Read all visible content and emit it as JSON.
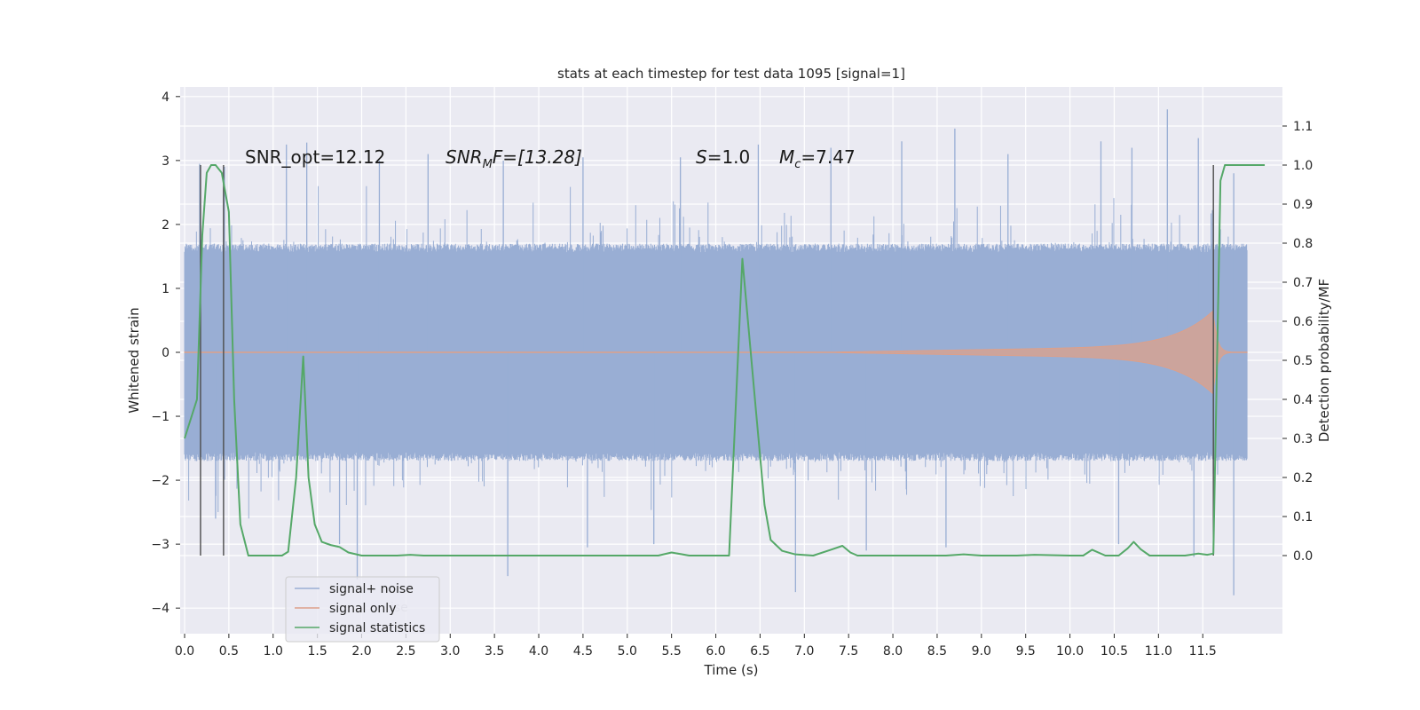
{
  "chart_data": {
    "type": "line",
    "title": "stats at each timestep for test data 1095 [signal=1]",
    "xlabel": "Time (s)",
    "ylabel": "Whitened strain",
    "y2label": "Detection probability/MF",
    "xlim": [
      -0.05,
      12.4
    ],
    "ylim": [
      -4.4,
      4.15
    ],
    "y2lim": [
      -0.2,
      1.2
    ],
    "xticks": [
      0.0,
      0.5,
      1.0,
      1.5,
      2.0,
      2.5,
      3.0,
      3.5,
      4.0,
      4.5,
      5.0,
      5.5,
      6.0,
      6.5,
      7.0,
      7.5,
      8.0,
      8.5,
      9.0,
      9.5,
      10.0,
      10.5,
      11.0,
      11.5
    ],
    "xticklabels": [
      "0.0",
      "0.5",
      "1.0",
      "1.5",
      "2.0",
      "2.5",
      "3.0",
      "3.5",
      "4.0",
      "4.5",
      "5.0",
      "5.5",
      "6.0",
      "6.5",
      "7.0",
      "7.5",
      "8.0",
      "8.5",
      "9.0",
      "9.5",
      "10.0",
      "10.5",
      "11.0",
      "11.5"
    ],
    "yticks": [
      4,
      3,
      2,
      1,
      0,
      -1,
      -2,
      -3,
      -4
    ],
    "yticklabels": [
      "4",
      "3",
      "2",
      "1",
      "0",
      "−1",
      "−2",
      "−3",
      "−4"
    ],
    "y2ticks": [
      1.1,
      1.0,
      0.9,
      0.8,
      0.7,
      0.6,
      0.5,
      0.4,
      0.3,
      0.2,
      0.1,
      0.0
    ],
    "y2ticklabels": [
      "1.1",
      "1.0",
      "0.9",
      "0.8",
      "0.7",
      "0.6",
      "0.5",
      "0.4",
      "0.3",
      "0.2",
      "0.1",
      "0.0"
    ],
    "noise_band": {
      "name": "signal+ noise",
      "x_range": [
        0.0,
        12.0
      ],
      "core_amplitude": 1.7,
      "peaks": [
        {
          "x": 0.17,
          "y": 2.95
        },
        {
          "x": 0.45,
          "y": 2.9
        },
        {
          "x": 1.15,
          "y": 3.25
        },
        {
          "x": 1.38,
          "y": 3.28
        },
        {
          "x": 2.2,
          "y": 3.0
        },
        {
          "x": 2.75,
          "y": 3.1
        },
        {
          "x": 3.6,
          "y": 3.0
        },
        {
          "x": 4.5,
          "y": 3.05
        },
        {
          "x": 5.6,
          "y": 3.05
        },
        {
          "x": 6.48,
          "y": 3.25
        },
        {
          "x": 7.3,
          "y": 3.2
        },
        {
          "x": 8.1,
          "y": 3.3
        },
        {
          "x": 8.7,
          "y": 3.5
        },
        {
          "x": 9.3,
          "y": 3.1
        },
        {
          "x": 10.35,
          "y": 3.3
        },
        {
          "x": 10.7,
          "y": 3.2
        },
        {
          "x": 11.1,
          "y": 3.8
        },
        {
          "x": 11.45,
          "y": 3.35
        },
        {
          "x": 11.85,
          "y": 2.8
        }
      ],
      "troughs": [
        {
          "x": 0.35,
          "y": -2.6
        },
        {
          "x": 1.75,
          "y": -3.0
        },
        {
          "x": 1.95,
          "y": -3.55
        },
        {
          "x": 3.65,
          "y": -3.5
        },
        {
          "x": 4.55,
          "y": -3.05
        },
        {
          "x": 5.3,
          "y": -3.0
        },
        {
          "x": 6.9,
          "y": -3.75
        },
        {
          "x": 7.7,
          "y": -3.1
        },
        {
          "x": 8.6,
          "y": -3.05
        },
        {
          "x": 10.55,
          "y": -3.0
        },
        {
          "x": 11.4,
          "y": -3.2
        },
        {
          "x": 11.85,
          "y": -3.8
        }
      ]
    },
    "signal_only": {
      "name": "signal only",
      "start": 7.3,
      "merger": 11.62,
      "peak_amplitude": 0.65
    },
    "signal_statistics": {
      "name": "signal statistics",
      "x": [
        0.0,
        0.14,
        0.2,
        0.25,
        0.3,
        0.35,
        0.42,
        0.5,
        0.56,
        0.63,
        0.72,
        0.8,
        1.0,
        1.1,
        1.17,
        1.26,
        1.34,
        1.4,
        1.47,
        1.55,
        1.65,
        1.75,
        1.85,
        2.0,
        2.2,
        2.4,
        2.55,
        2.7,
        3.0,
        4.0,
        5.0,
        5.35,
        5.5,
        5.7,
        6.0,
        6.15,
        6.3,
        6.45,
        6.55,
        6.62,
        6.75,
        6.9,
        7.1,
        7.3,
        7.43,
        7.52,
        7.6,
        7.8,
        8.2,
        8.6,
        8.8,
        9.0,
        9.4,
        9.6,
        10.0,
        10.15,
        10.25,
        10.4,
        10.55,
        10.65,
        10.72,
        10.8,
        10.9,
        11.1,
        11.3,
        11.45,
        11.55,
        11.62,
        11.7,
        11.75,
        11.78,
        11.85,
        12.0,
        12.2
      ],
      "y": [
        0.3,
        0.4,
        0.82,
        0.98,
        1.0,
        1.0,
        0.98,
        0.88,
        0.4,
        0.08,
        0.0,
        0.0,
        0.0,
        0.0,
        0.01,
        0.2,
        0.51,
        0.2,
        0.08,
        0.035,
        0.027,
        0.022,
        0.008,
        0.0,
        0.0,
        0.0,
        0.002,
        0.0,
        0.0,
        0.0,
        0.0,
        0.0,
        0.008,
        0.0,
        0.0,
        0.0,
        0.76,
        0.38,
        0.13,
        0.04,
        0.012,
        0.003,
        0.0,
        0.015,
        0.025,
        0.008,
        0.0,
        0.0,
        0.0,
        0.0,
        0.003,
        0.0,
        0.0,
        0.002,
        0.0,
        0.0,
        0.015,
        0.0,
        0.0,
        0.018,
        0.035,
        0.016,
        0.0,
        0.0,
        0.0,
        0.005,
        0.002,
        0.005,
        0.96,
        1.0,
        1.0,
        1.0,
        1.0,
        1.0
      ]
    },
    "vertical_markers": [
      {
        "x": 0.18,
        "y_from": 0.0,
        "y_to": 1.0
      },
      {
        "x": 0.44,
        "y_from": 0.0,
        "y_to": 1.0
      },
      {
        "x": 11.62,
        "y_from": 0.0,
        "y_to": 1.0
      }
    ],
    "annotations": {
      "snr_opt": "SNR_opt=12.12",
      "snr_mf_main": "SNR",
      "snr_mf_sub": "M",
      "snr_mf_rest": "F=[13.28]",
      "s_main": "S",
      "s_rest": "=1.0",
      "mc_main": "M",
      "mc_sub": "c",
      "mc_rest": "=7.47"
    },
    "legend": {
      "position": "lower-left",
      "entries": [
        "signal+ noise",
        "signal only",
        "signal statistics"
      ],
      "ghost_text": "ise"
    },
    "colors": {
      "noise": "#99aed4",
      "signal": "#dda08a",
      "stats": "#55a868",
      "marker": "#4c4c4c",
      "panel": "#eaeaf2",
      "grid": "#ffffff"
    }
  }
}
